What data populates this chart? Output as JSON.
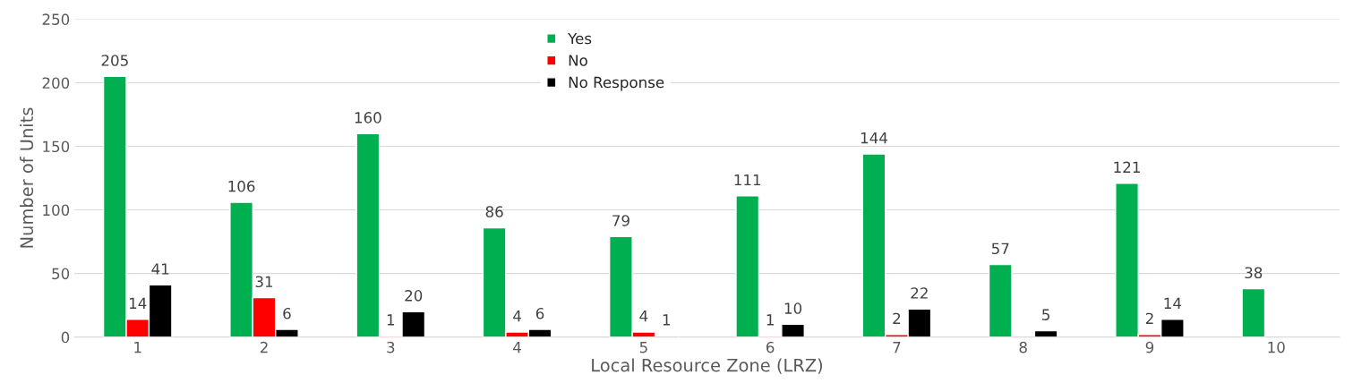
{
  "chart_data": {
    "type": "bar",
    "xlabel": "Local Resource Zone (LRZ)",
    "ylabel": "Number of Units",
    "categories": [
      "1",
      "2",
      "3",
      "4",
      "5",
      "6",
      "7",
      "8",
      "9",
      "10"
    ],
    "series": [
      {
        "name": "Yes",
        "color": "#00b050",
        "values": [
          205,
          106,
          160,
          86,
          79,
          111,
          144,
          57,
          121,
          38
        ]
      },
      {
        "name": "No",
        "color": "#ff0000",
        "values": [
          14,
          31,
          1,
          4,
          4,
          1,
          2,
          null,
          2,
          null
        ]
      },
      {
        "name": "No Response",
        "color": "#000000",
        "values": [
          41,
          6,
          20,
          6,
          1,
          10,
          22,
          5,
          14,
          null
        ]
      }
    ],
    "ylim": [
      0,
      250
    ],
    "yticks": [
      0,
      50,
      100,
      150,
      200,
      250
    ],
    "grid": "y",
    "legend": "top",
    "data_labels": true
  }
}
